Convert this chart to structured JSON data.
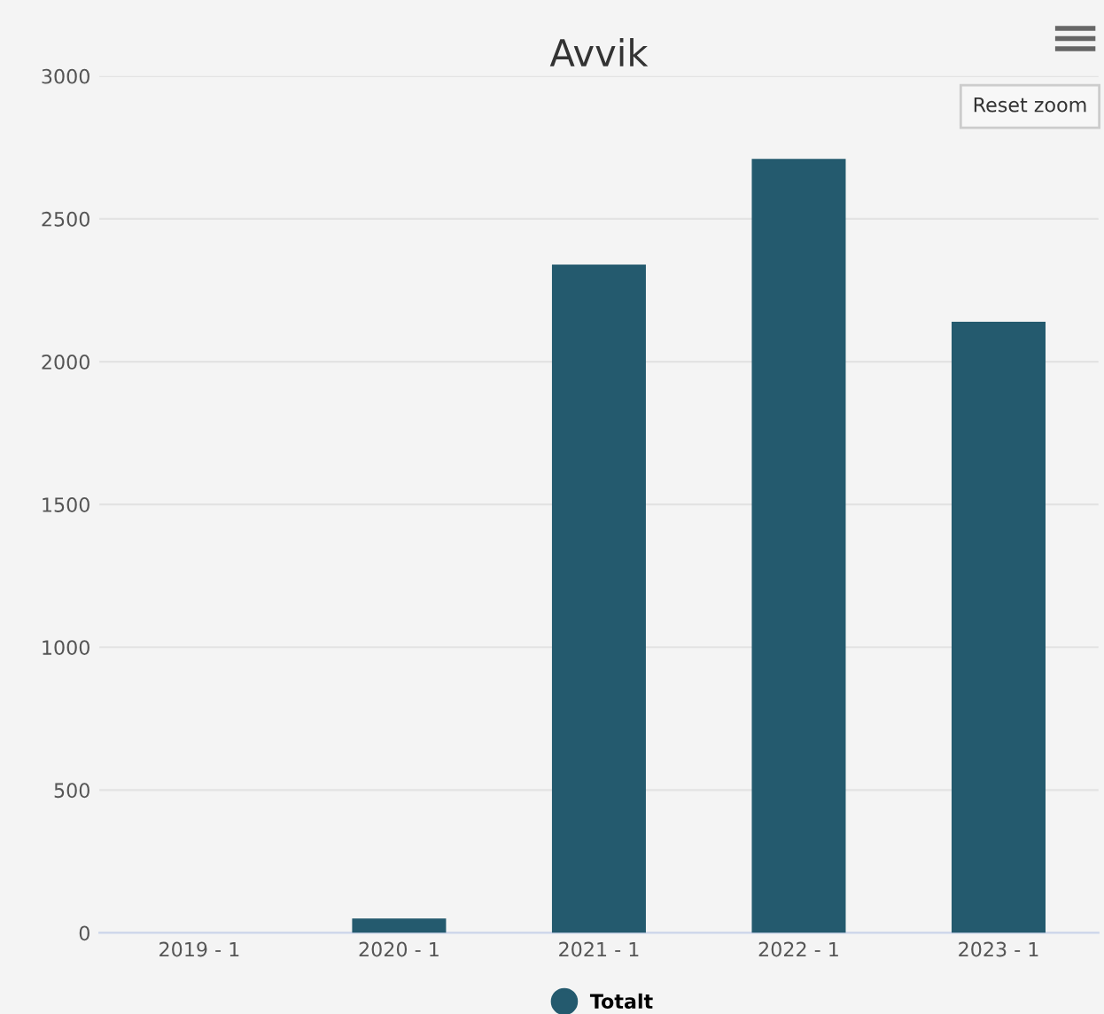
{
  "chart_data": {
    "type": "bar",
    "title": "Avvik",
    "categories": [
      "2019 - 1",
      "2020 - 1",
      "2021 - 1",
      "2022 - 1",
      "2023 - 1"
    ],
    "series": [
      {
        "name": "Totalt",
        "color": "#245a6e",
        "values": [
          0,
          50,
          2340,
          2710,
          2140
        ]
      }
    ],
    "ylim": [
      0,
      3000
    ],
    "yticks": [
      0,
      500,
      1000,
      1500,
      2000,
      2500,
      3000
    ],
    "grid": "y",
    "legend": "bottom",
    "annotations": [
      "Reset zoom"
    ]
  }
}
